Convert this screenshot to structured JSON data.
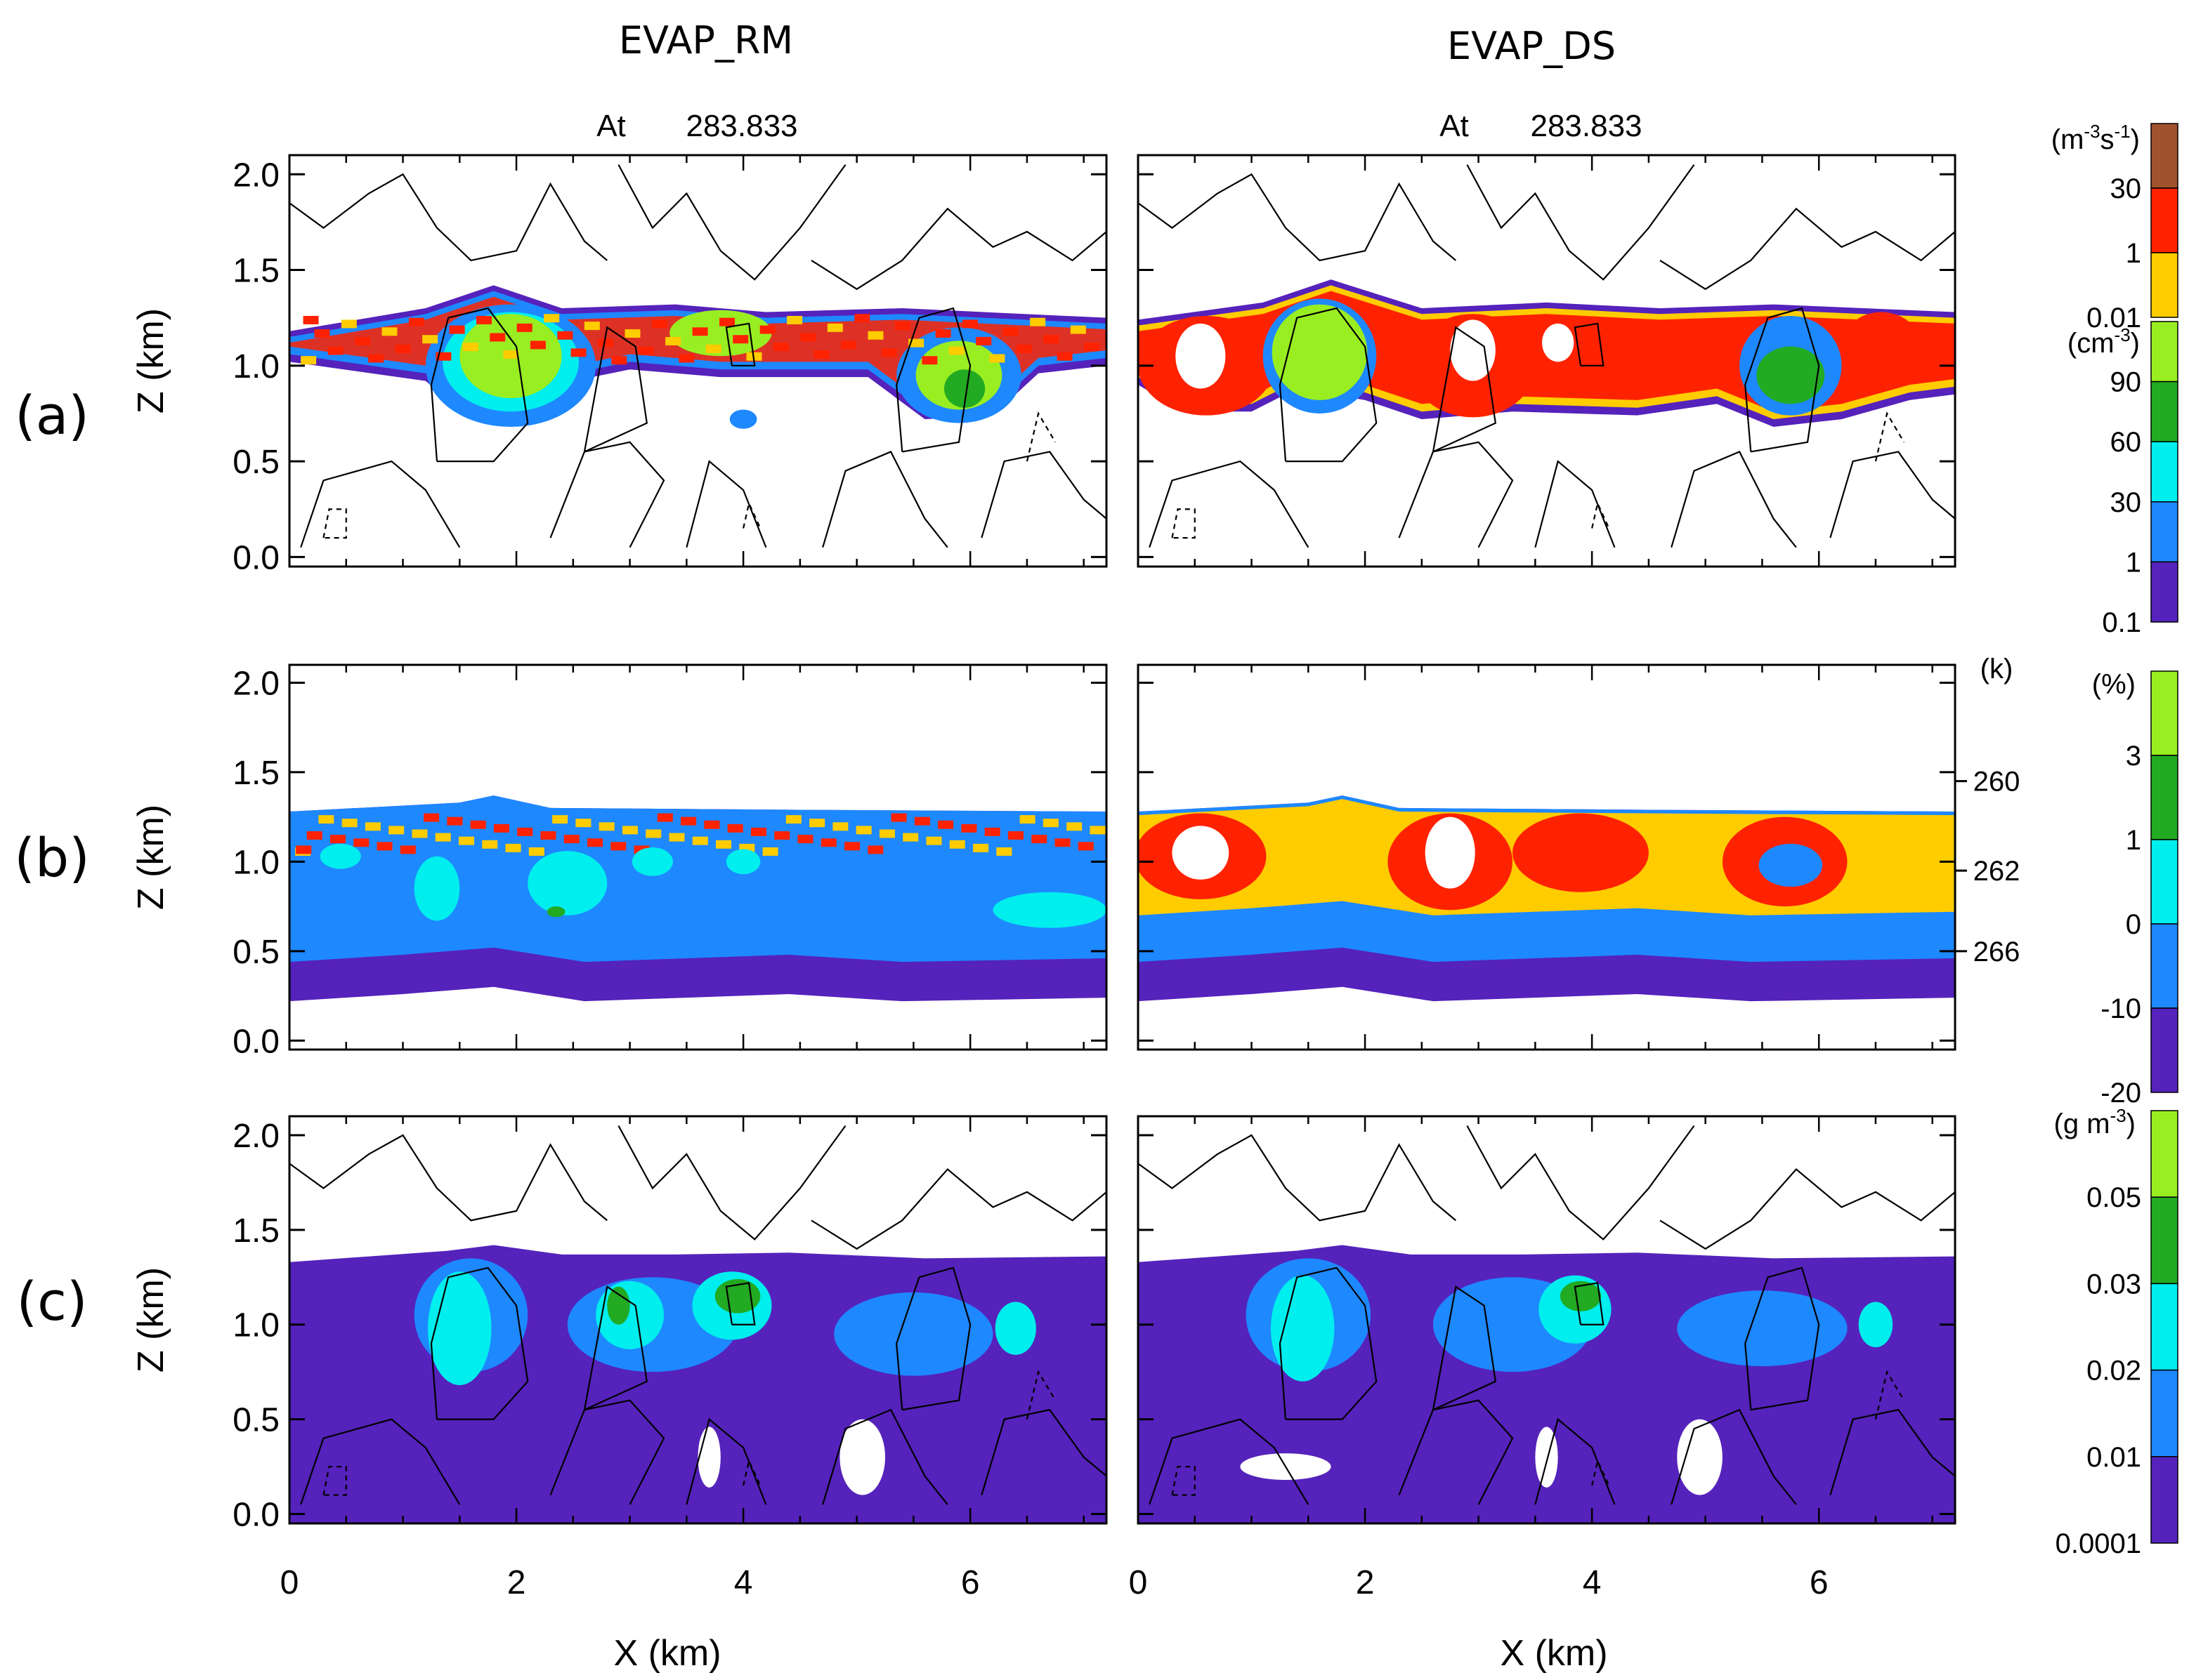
{
  "figure": {
    "columns": [
      {
        "title": "EVAP_RM",
        "time_label": "At",
        "time_value": "283.833"
      },
      {
        "title": "EVAP_DS",
        "time_label": "At",
        "time_value": "283.833"
      }
    ],
    "row_labels": [
      "(a)",
      "(b)",
      "(c)"
    ]
  },
  "chart_data": {
    "type": "heatmap",
    "xlabel": "X (km)",
    "ylabel": "Z (km)",
    "xlim": [
      0,
      7.2
    ],
    "ylim": [
      -0.05,
      2.1
    ],
    "xticks": [
      "0",
      "2",
      "4",
      "6"
    ],
    "yticks": [
      "0.0",
      "0.5",
      "1.0",
      "1.5",
      "2.0"
    ],
    "xtick_values": [
      0,
      2,
      4,
      6
    ],
    "ytick_values": [
      0.0,
      0.5,
      1.0,
      1.5,
      2.0
    ],
    "colorbars": [
      {
        "row": "a",
        "upper": {
          "unit_base": "(m",
          "unit_sup1": "-3",
          "unit_mid": "s",
          "unit_sup2": "-1",
          "unit_end": ")",
          "labels": [
            "30",
            "1",
            "0.01"
          ],
          "colors": [
            "#a0522d",
            "#ff2200",
            "#ffcc00"
          ]
        },
        "lower": {
          "unit_base": "(cm",
          "unit_sup": "-3",
          "unit_end": ")",
          "labels": [
            "90",
            "60",
            "30",
            "1",
            "0.1"
          ],
          "colors": [
            "#99ee22",
            "#22aa22",
            "#00eeee",
            "#1e88ff",
            "#5522bb"
          ]
        }
      },
      {
        "row": "b",
        "unit": "(%)",
        "labels": [
          "3",
          "1",
          "0",
          "-10",
          "-20"
        ],
        "colors": [
          "#99ee22",
          "#22aa22",
          "#00eeee",
          "#1e88ff",
          "#5522bb"
        ],
        "temperature_unit": "(k)",
        "temperature_labels": [
          "260",
          "262",
          "266"
        ],
        "temperature_levels_km": [
          1.45,
          0.95,
          0.5
        ]
      },
      {
        "row": "c",
        "unit_base": "(g m",
        "unit_sup": "-3",
        "unit_end": ")",
        "labels": [
          "0.05",
          "0.03",
          "0.02",
          "0.01",
          "0.0001"
        ],
        "colors": [
          "#99ee22",
          "#22aa22",
          "#00eeee",
          "#1e88ff",
          "#5522bb"
        ]
      }
    ],
    "cloud_top_km": {
      "a_rm": [
        [
          0,
          1.18
        ],
        [
          1.2,
          1.3
        ],
        [
          1.8,
          1.42
        ],
        [
          2.4,
          1.3
        ],
        [
          3.4,
          1.32
        ],
        [
          4.2,
          1.28
        ],
        [
          5.4,
          1.3
        ],
        [
          7.2,
          1.25
        ]
      ],
      "a_ds": [
        [
          0,
          1.24
        ],
        [
          1.1,
          1.33
        ],
        [
          1.7,
          1.45
        ],
        [
          2.5,
          1.3
        ],
        [
          3.6,
          1.33
        ],
        [
          4.6,
          1.3
        ],
        [
          5.6,
          1.32
        ],
        [
          7.2,
          1.28
        ]
      ],
      "b": [
        [
          0,
          1.28
        ],
        [
          1.5,
          1.33
        ],
        [
          1.8,
          1.37
        ],
        [
          2.3,
          1.3
        ],
        [
          4.5,
          1.29
        ],
        [
          7.2,
          1.28
        ]
      ],
      "c": [
        [
          0,
          1.33
        ],
        [
          1.4,
          1.39
        ],
        [
          1.8,
          1.42
        ],
        [
          2.4,
          1.37
        ],
        [
          3.4,
          1.37
        ],
        [
          4.4,
          1.38
        ],
        [
          5.6,
          1.35
        ],
        [
          7.2,
          1.36
        ]
      ]
    },
    "cloud_base_km": {
      "a_rm": [
        [
          0,
          1.02
        ],
        [
          1.2,
          0.92
        ],
        [
          1.6,
          0.72
        ],
        [
          2.1,
          0.72
        ],
        [
          2.5,
          0.92
        ],
        [
          3.0,
          0.98
        ],
        [
          3.8,
          0.94
        ],
        [
          5.1,
          0.94
        ],
        [
          5.6,
          0.72
        ],
        [
          6.2,
          0.74
        ],
        [
          6.6,
          0.96
        ],
        [
          7.2,
          1.0
        ]
      ],
      "a_ds": [
        [
          0,
          0.9
        ],
        [
          0.4,
          0.76
        ],
        [
          1.0,
          0.76
        ],
        [
          1.4,
          0.88
        ],
        [
          2.0,
          0.82
        ],
        [
          2.5,
          0.72
        ],
        [
          3.3,
          0.76
        ],
        [
          4.4,
          0.74
        ],
        [
          5.1,
          0.8
        ],
        [
          5.6,
          0.68
        ],
        [
          6.2,
          0.72
        ],
        [
          6.8,
          0.82
        ],
        [
          7.2,
          0.85
        ]
      ],
      "b_rm": [
        [
          0,
          0.22
        ],
        [
          1.0,
          0.26
        ],
        [
          1.8,
          0.3
        ],
        [
          2.6,
          0.22
        ],
        [
          4.4,
          0.26
        ],
        [
          5.4,
          0.22
        ],
        [
          7.2,
          0.24
        ]
      ],
      "b_ds": [
        [
          0,
          0.22
        ],
        [
          1.0,
          0.26
        ],
        [
          1.8,
          0.3
        ],
        [
          2.6,
          0.22
        ],
        [
          4.4,
          0.26
        ],
        [
          5.4,
          0.22
        ],
        [
          7.2,
          0.24
        ]
      ]
    },
    "panels": {
      "a_rm": [
        {
          "color": "#1e88ff",
          "cx": 1.95,
          "cy": 1.0,
          "rx": 0.75,
          "ry": 0.32
        },
        {
          "color": "#00eeee",
          "cx": 1.95,
          "cy": 1.02,
          "rx": 0.6,
          "ry": 0.26
        },
        {
          "color": "#99ee22",
          "cx": 1.95,
          "cy": 1.05,
          "rx": 0.45,
          "ry": 0.22
        },
        {
          "color": "#1e88ff",
          "cx": 5.9,
          "cy": 0.95,
          "rx": 0.55,
          "ry": 0.25
        },
        {
          "color": "#99ee22",
          "cx": 5.9,
          "cy": 0.95,
          "rx": 0.38,
          "ry": 0.18
        },
        {
          "color": "#22aa22",
          "cx": 5.95,
          "cy": 0.88,
          "rx": 0.18,
          "ry": 0.1
        },
        {
          "color": "#99ee22",
          "cx": 3.8,
          "cy": 1.17,
          "rx": 0.45,
          "ry": 0.12
        },
        {
          "color": "#1e88ff",
          "cx": 4.0,
          "cy": 0.72,
          "rx": 0.12,
          "ry": 0.05
        }
      ],
      "a_ds": [
        {
          "color": "#ff2200",
          "cx": 0.6,
          "cy": 1.0,
          "rx": 0.6,
          "ry": 0.26
        },
        {
          "color": "#ffffff",
          "cx": 0.55,
          "cy": 1.05,
          "rx": 0.22,
          "ry": 0.17
        },
        {
          "color": "#1e88ff",
          "cx": 1.6,
          "cy": 1.05,
          "rx": 0.5,
          "ry": 0.3
        },
        {
          "color": "#99ee22",
          "cx": 1.6,
          "cy": 1.07,
          "rx": 0.42,
          "ry": 0.25
        },
        {
          "color": "#ff2200",
          "cx": 2.95,
          "cy": 1.0,
          "rx": 0.55,
          "ry": 0.27
        },
        {
          "color": "#ffffff",
          "cx": 2.95,
          "cy": 1.08,
          "rx": 0.2,
          "ry": 0.16
        },
        {
          "color": "#ff2200",
          "cx": 4.15,
          "cy": 1.05,
          "rx": 0.6,
          "ry": 0.2
        },
        {
          "color": "#ffffff",
          "cx": 3.7,
          "cy": 1.12,
          "rx": 0.14,
          "ry": 0.1
        },
        {
          "color": "#1e88ff",
          "cx": 5.75,
          "cy": 1.0,
          "rx": 0.45,
          "ry": 0.26
        },
        {
          "color": "#22aa22",
          "cx": 5.75,
          "cy": 0.95,
          "rx": 0.3,
          "ry": 0.15
        },
        {
          "color": "#ff2200",
          "cx": 6.55,
          "cy": 1.1,
          "rx": 0.35,
          "ry": 0.18
        }
      ],
      "b_rm": [
        {
          "color": "#00eeee",
          "cx": 0.45,
          "cy": 1.03,
          "rx": 0.18,
          "ry": 0.07
        },
        {
          "color": "#00eeee",
          "cx": 1.3,
          "cy": 0.85,
          "rx": 0.2,
          "ry": 0.18
        },
        {
          "color": "#00eeee",
          "cx": 2.45,
          "cy": 0.88,
          "rx": 0.35,
          "ry": 0.18
        },
        {
          "color": "#00eeee",
          "cx": 3.2,
          "cy": 1.0,
          "rx": 0.18,
          "ry": 0.08
        },
        {
          "color": "#00eeee",
          "cx": 4.0,
          "cy": 1.0,
          "rx": 0.15,
          "ry": 0.07
        },
        {
          "color": "#00eeee",
          "cx": 6.7,
          "cy": 0.73,
          "rx": 0.5,
          "ry": 0.1
        },
        {
          "color": "#22aa22",
          "cx": 2.35,
          "cy": 0.72,
          "rx": 0.08,
          "ry": 0.03
        }
      ],
      "b_ds": [
        {
          "color": "#ff2200",
          "cx": 0.55,
          "cy": 1.03,
          "rx": 0.58,
          "ry": 0.24
        },
        {
          "color": "#ffffff",
          "cx": 0.55,
          "cy": 1.05,
          "rx": 0.25,
          "ry": 0.15
        },
        {
          "color": "#ff2200",
          "cx": 2.75,
          "cy": 1.0,
          "rx": 0.55,
          "ry": 0.27
        },
        {
          "color": "#ffffff",
          "cx": 2.75,
          "cy": 1.05,
          "rx": 0.22,
          "ry": 0.2
        },
        {
          "color": "#ff2200",
          "cx": 3.9,
          "cy": 1.05,
          "rx": 0.6,
          "ry": 0.22
        },
        {
          "color": "#ff2200",
          "cx": 5.7,
          "cy": 1.0,
          "rx": 0.55,
          "ry": 0.25
        },
        {
          "color": "#1e88ff",
          "cx": 5.75,
          "cy": 0.98,
          "rx": 0.28,
          "ry": 0.12
        }
      ],
      "c_rm": [
        {
          "color": "#1e88ff",
          "cx": 1.6,
          "cy": 1.05,
          "rx": 0.5,
          "ry": 0.3
        },
        {
          "color": "#00eeee",
          "cx": 1.5,
          "cy": 0.98,
          "rx": 0.28,
          "ry": 0.3
        },
        {
          "color": "#1e88ff",
          "cx": 3.2,
          "cy": 1.0,
          "rx": 0.75,
          "ry": 0.25
        },
        {
          "color": "#00eeee",
          "cx": 3.0,
          "cy": 1.05,
          "rx": 0.3,
          "ry": 0.18
        },
        {
          "color": "#00eeee",
          "cx": 3.9,
          "cy": 1.1,
          "rx": 0.35,
          "ry": 0.18
        },
        {
          "color": "#22aa22",
          "cx": 2.9,
          "cy": 1.1,
          "rx": 0.1,
          "ry": 0.1
        },
        {
          "color": "#22aa22",
          "cx": 3.95,
          "cy": 1.15,
          "rx": 0.2,
          "ry": 0.09
        },
        {
          "color": "#1e88ff",
          "cx": 5.5,
          "cy": 0.95,
          "rx": 0.7,
          "ry": 0.22
        },
        {
          "color": "#00eeee",
          "cx": 6.4,
          "cy": 0.98,
          "rx": 0.18,
          "ry": 0.14
        },
        {
          "color": "#ffffff",
          "cx": 3.7,
          "cy": 0.3,
          "rx": 0.1,
          "ry": 0.16
        },
        {
          "color": "#ffffff",
          "cx": 5.05,
          "cy": 0.3,
          "rx": 0.2,
          "ry": 0.2
        }
      ],
      "c_ds": [
        {
          "color": "#1e88ff",
          "cx": 1.5,
          "cy": 1.05,
          "rx": 0.55,
          "ry": 0.3
        },
        {
          "color": "#00eeee",
          "cx": 1.45,
          "cy": 0.98,
          "rx": 0.28,
          "ry": 0.28
        },
        {
          "color": "#1e88ff",
          "cx": 3.3,
          "cy": 1.0,
          "rx": 0.7,
          "ry": 0.25
        },
        {
          "color": "#00eeee",
          "cx": 3.85,
          "cy": 1.08,
          "rx": 0.32,
          "ry": 0.18
        },
        {
          "color": "#22aa22",
          "cx": 3.9,
          "cy": 1.15,
          "rx": 0.18,
          "ry": 0.08
        },
        {
          "color": "#1e88ff",
          "cx": 5.5,
          "cy": 0.98,
          "rx": 0.75,
          "ry": 0.2
        },
        {
          "color": "#00eeee",
          "cx": 6.5,
          "cy": 1.0,
          "rx": 0.15,
          "ry": 0.12
        },
        {
          "color": "#ffffff",
          "cx": 1.3,
          "cy": 0.25,
          "rx": 0.4,
          "ry": 0.07
        },
        {
          "color": "#ffffff",
          "cx": 3.6,
          "cy": 0.3,
          "rx": 0.1,
          "ry": 0.16
        },
        {
          "color": "#ffffff",
          "cx": 4.95,
          "cy": 0.3,
          "rx": 0.2,
          "ry": 0.2
        }
      ]
    },
    "contours": {
      "upper": [
        [
          [
            0,
            1.85
          ],
          [
            0.3,
            1.72
          ],
          [
            0.7,
            1.9
          ],
          [
            1.0,
            2.0
          ],
          [
            1.3,
            1.72
          ],
          [
            1.6,
            1.55
          ],
          [
            2.0,
            1.6
          ],
          [
            2.3,
            1.95
          ],
          [
            2.6,
            1.65
          ],
          [
            2.8,
            1.55
          ]
        ],
        [
          [
            2.9,
            2.05
          ],
          [
            3.2,
            1.72
          ],
          [
            3.5,
            1.9
          ],
          [
            3.8,
            1.6
          ],
          [
            4.1,
            1.45
          ],
          [
            4.5,
            1.72
          ],
          [
            4.9,
            2.05
          ]
        ],
        [
          [
            4.6,
            1.55
          ],
          [
            5.0,
            1.4
          ],
          [
            5.4,
            1.55
          ],
          [
            5.8,
            1.82
          ],
          [
            6.2,
            1.62
          ],
          [
            6.5,
            1.7
          ],
          [
            6.9,
            1.55
          ],
          [
            7.2,
            1.7
          ]
        ]
      ],
      "updrafts": [
        [
          [
            1.3,
            0.5
          ],
          [
            1.25,
            0.9
          ],
          [
            1.4,
            1.25
          ],
          [
            1.75,
            1.3
          ],
          [
            2.0,
            1.1
          ],
          [
            2.1,
            0.7
          ],
          [
            1.8,
            0.5
          ],
          [
            1.3,
            0.5
          ]
        ],
        [
          [
            5.4,
            0.55
          ],
          [
            5.35,
            0.9
          ],
          [
            5.55,
            1.25
          ],
          [
            5.85,
            1.3
          ],
          [
            6.0,
            1.0
          ],
          [
            5.9,
            0.6
          ],
          [
            5.4,
            0.55
          ]
        ],
        [
          [
            3.9,
            1.0
          ],
          [
            3.85,
            1.2
          ],
          [
            4.05,
            1.22
          ],
          [
            4.1,
            1.0
          ],
          [
            3.9,
            1.0
          ]
        ],
        [
          [
            2.6,
            0.55
          ],
          [
            2.8,
            1.2
          ],
          [
            3.05,
            1.1
          ],
          [
            3.15,
            0.7
          ],
          [
            2.6,
            0.55
          ]
        ]
      ],
      "lower": [
        [
          [
            0.1,
            0.05
          ],
          [
            0.3,
            0.4
          ],
          [
            0.9,
            0.5
          ],
          [
            1.2,
            0.35
          ],
          [
            1.5,
            0.05
          ]
        ],
        [
          [
            2.3,
            0.1
          ],
          [
            2.6,
            0.55
          ],
          [
            3.0,
            0.6
          ],
          [
            3.3,
            0.4
          ],
          [
            3.0,
            0.05
          ]
        ],
        [
          [
            3.5,
            0.05
          ],
          [
            3.7,
            0.5
          ],
          [
            4.0,
            0.35
          ],
          [
            4.2,
            0.05
          ]
        ],
        [
          [
            4.7,
            0.05
          ],
          [
            4.9,
            0.45
          ],
          [
            5.3,
            0.55
          ],
          [
            5.6,
            0.2
          ],
          [
            5.8,
            0.05
          ]
        ],
        [
          [
            6.1,
            0.1
          ],
          [
            6.3,
            0.5
          ],
          [
            6.7,
            0.55
          ],
          [
            7.0,
            0.3
          ],
          [
            7.2,
            0.2
          ]
        ]
      ],
      "negative": [
        [
          [
            0.3,
            0.1
          ],
          [
            0.35,
            0.25
          ],
          [
            0.5,
            0.25
          ],
          [
            0.5,
            0.1
          ],
          [
            0.3,
            0.1
          ]
        ],
        [
          [
            4.0,
            0.15
          ],
          [
            4.05,
            0.28
          ],
          [
            4.15,
            0.15
          ]
        ],
        [
          [
            6.5,
            0.5
          ],
          [
            6.6,
            0.75
          ],
          [
            6.75,
            0.6
          ]
        ]
      ]
    }
  }
}
